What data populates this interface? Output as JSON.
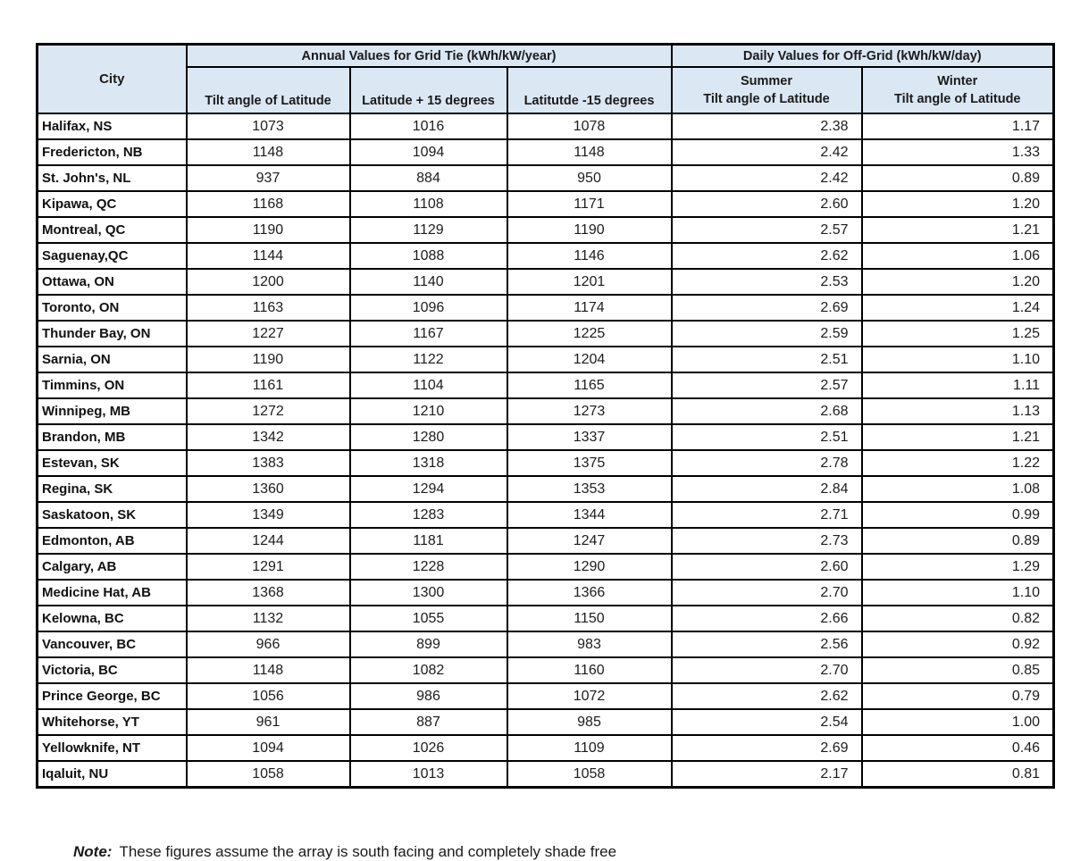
{
  "colors": {
    "header_bg": "#dbe8f4",
    "border": "#000000"
  },
  "table": {
    "city_header": "City",
    "annual_group": "Annual Values for Grid Tie (kWh/kW/year)",
    "daily_group": "Daily Values for Off-Grid (kWh/kW/day)",
    "annual_cols": [
      "Tilt angle of Latitude",
      "Latitude + 15 degrees",
      "Latitutde -15 degrees"
    ],
    "daily_cols": [
      {
        "line1": "Summer",
        "line2": "Tilt angle of Latitude"
      },
      {
        "line1": "Winter",
        "line2": "Tilt angle of Latitude"
      }
    ]
  },
  "chart_data": {
    "type": "table",
    "columns": [
      "City",
      "Annual Grid Tie - Tilt angle of Latitude (kWh/kW/year)",
      "Annual Grid Tie - Latitude + 15 degrees (kWh/kW/year)",
      "Annual Grid Tie - Latitutde -15 degrees (kWh/kW/year)",
      "Off-Grid Summer - Tilt angle of Latitude (kWh/kW/day)",
      "Off-Grid Winter - Tilt angle of Latitude (kWh/kW/day)"
    ],
    "rows": [
      {
        "city": "Halifax, NS",
        "annual": [
          1073,
          1016,
          1078
        ],
        "daily": [
          "2.38",
          "1.17"
        ]
      },
      {
        "city": "Fredericton, NB",
        "annual": [
          1148,
          1094,
          1148
        ],
        "daily": [
          "2.42",
          "1.33"
        ]
      },
      {
        "city": "St. John's, NL",
        "annual": [
          937,
          884,
          950
        ],
        "daily": [
          "2.42",
          "0.89"
        ]
      },
      {
        "city": "Kipawa, QC",
        "annual": [
          1168,
          1108,
          1171
        ],
        "daily": [
          "2.60",
          "1.20"
        ]
      },
      {
        "city": "Montreal, QC",
        "annual": [
          1190,
          1129,
          1190
        ],
        "daily": [
          "2.57",
          "1.21"
        ]
      },
      {
        "city": "Saguenay,QC",
        "annual": [
          1144,
          1088,
          1146
        ],
        "daily": [
          "2.62",
          "1.06"
        ]
      },
      {
        "city": "Ottawa, ON",
        "annual": [
          1200,
          1140,
          1201
        ],
        "daily": [
          "2.53",
          "1.20"
        ]
      },
      {
        "city": "Toronto, ON",
        "annual": [
          1163,
          1096,
          1174
        ],
        "daily": [
          "2.69",
          "1.24"
        ]
      },
      {
        "city": "Thunder Bay, ON",
        "annual": [
          1227,
          1167,
          1225
        ],
        "daily": [
          "2.59",
          "1.25"
        ]
      },
      {
        "city": "Sarnia, ON",
        "annual": [
          1190,
          1122,
          1204
        ],
        "daily": [
          "2.51",
          "1.10"
        ]
      },
      {
        "city": "Timmins, ON",
        "annual": [
          1161,
          1104,
          1165
        ],
        "daily": [
          "2.57",
          "1.11"
        ]
      },
      {
        "city": "Winnipeg, MB",
        "annual": [
          1272,
          1210,
          1273
        ],
        "daily": [
          "2.68",
          "1.13"
        ]
      },
      {
        "city": "Brandon, MB",
        "annual": [
          1342,
          1280,
          1337
        ],
        "daily": [
          "2.51",
          "1.21"
        ]
      },
      {
        "city": "Estevan, SK",
        "annual": [
          1383,
          1318,
          1375
        ],
        "daily": [
          "2.78",
          "1.22"
        ]
      },
      {
        "city": "Regina, SK",
        "annual": [
          1360,
          1294,
          1353
        ],
        "daily": [
          "2.84",
          "1.08"
        ]
      },
      {
        "city": "Saskatoon, SK",
        "annual": [
          1349,
          1283,
          1344
        ],
        "daily": [
          "2.71",
          "0.99"
        ]
      },
      {
        "city": "Edmonton, AB",
        "annual": [
          1244,
          1181,
          1247
        ],
        "daily": [
          "2.73",
          "0.89"
        ]
      },
      {
        "city": "Calgary, AB",
        "annual": [
          1291,
          1228,
          1290
        ],
        "daily": [
          "2.60",
          "1.29"
        ]
      },
      {
        "city": "Medicine Hat, AB",
        "annual": [
          1368,
          1300,
          1366
        ],
        "daily": [
          "2.70",
          "1.10"
        ]
      },
      {
        "city": "Kelowna, BC",
        "annual": [
          1132,
          1055,
          1150
        ],
        "daily": [
          "2.66",
          "0.82"
        ]
      },
      {
        "city": "Vancouver, BC",
        "annual": [
          966,
          899,
          983
        ],
        "daily": [
          "2.56",
          "0.92"
        ]
      },
      {
        "city": "Victoria, BC",
        "annual": [
          1148,
          1082,
          1160
        ],
        "daily": [
          "2.70",
          "0.85"
        ]
      },
      {
        "city": "Prince George, BC",
        "annual": [
          1056,
          986,
          1072
        ],
        "daily": [
          "2.62",
          "0.79"
        ]
      },
      {
        "city": "Whitehorse, YT",
        "annual": [
          961,
          887,
          985
        ],
        "daily": [
          "2.54",
          "1.00"
        ]
      },
      {
        "city": "Yellowknife, NT",
        "annual": [
          1094,
          1026,
          1109
        ],
        "daily": [
          "2.69",
          "0.46"
        ]
      },
      {
        "city": "Iqaluit, NU",
        "annual": [
          1058,
          1013,
          1058
        ],
        "daily": [
          "2.17",
          "0.81"
        ]
      }
    ]
  },
  "note": {
    "prefix": "Note:",
    "text": "These figures assume the array is south facing and completely shade free"
  }
}
